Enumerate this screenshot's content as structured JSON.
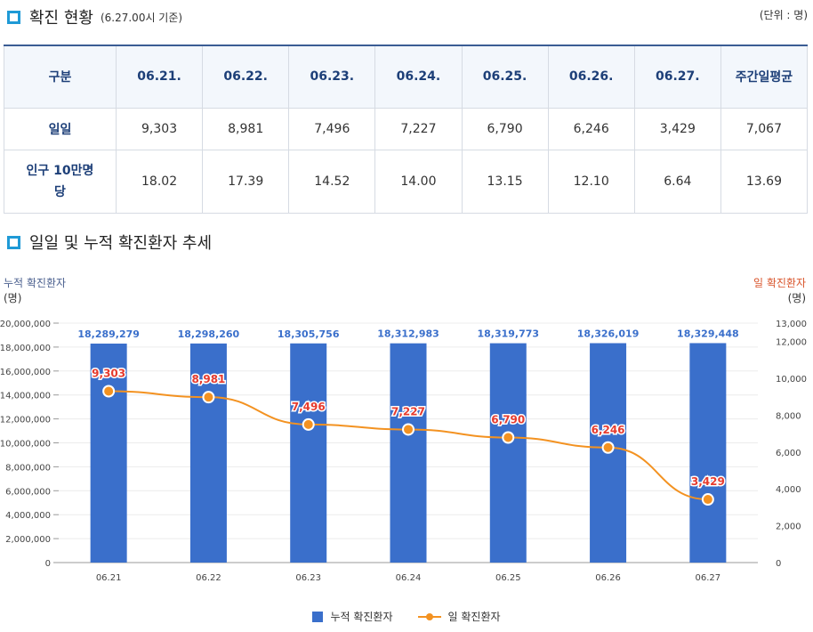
{
  "section1": {
    "title": "확진 현황",
    "subtitle": "(6.27.00시 기준)",
    "unit": "(단위 : 명)"
  },
  "table": {
    "corner": "구분",
    "headers": [
      "06.21.",
      "06.22.",
      "06.23.",
      "06.24.",
      "06.25.",
      "06.26.",
      "06.27.",
      "주간일평균"
    ],
    "rows": [
      {
        "label": "일일",
        "values": [
          "9,303",
          "8,981",
          "7,496",
          "7,227",
          "6,790",
          "6,246",
          "3,429",
          "7,067"
        ]
      },
      {
        "label": "인구 10만명당",
        "values": [
          "18.02",
          "17.39",
          "14.52",
          "14.00",
          "13.15",
          "12.10",
          "6.64",
          "13.69"
        ]
      }
    ]
  },
  "section2": {
    "title": "일일 및 누적 확진환자 추세"
  },
  "colors": {
    "bar": "#3a6fcb",
    "line": "#f39221",
    "bar_label": "#3a6fcb",
    "line_label": "#e63b2e",
    "accent": "#1f9ad6"
  },
  "chart_data": {
    "type": "bar+line",
    "categories": [
      "06.21",
      "06.22",
      "06.23",
      "06.24",
      "06.25",
      "06.26",
      "06.27"
    ],
    "series": [
      {
        "name": "누적 확진환자",
        "type": "bar",
        "axis": "left",
        "values": [
          18289279,
          18298260,
          18305756,
          18312983,
          18319773,
          18326019,
          18329448
        ]
      },
      {
        "name": "일 확진환자",
        "type": "line",
        "axis": "right",
        "values": [
          9303,
          8981,
          7496,
          7227,
          6790,
          6246,
          3429
        ]
      }
    ],
    "left_axis": {
      "label": "누적 확진환자",
      "unit": "(명)",
      "ylim": [
        0,
        20000000
      ],
      "ticks": [
        "0",
        "2,000,000",
        "4,000,000",
        "6,000,000",
        "8,000,000",
        "10,000,000",
        "12,000,000",
        "14,000,000",
        "16,000,000",
        "18,000,000",
        "20,000,000"
      ],
      "tick_values": [
        0,
        2000000,
        4000000,
        6000000,
        8000000,
        10000000,
        12000000,
        14000000,
        16000000,
        18000000,
        20000000
      ]
    },
    "right_axis": {
      "label": "일 확진환자",
      "unit": "(명)",
      "ylim": [
        0,
        13000
      ],
      "ticks": [
        "0",
        "2,000",
        "4,000",
        "6,000",
        "8,000",
        "10,000",
        "12,000",
        "13,000"
      ],
      "tick_values": [
        0,
        2000,
        4000,
        6000,
        8000,
        10000,
        12000,
        13000
      ]
    },
    "bar_labels": [
      "18,289,279",
      "18,298,260",
      "18,305,756",
      "18,312,983",
      "18,319,773",
      "18,326,019",
      "18,329,448"
    ],
    "line_labels": [
      "9,303",
      "8,981",
      "7,496",
      "7,227",
      "6,790",
      "6,246",
      "3,429"
    ],
    "legend": [
      "누적 확진환자",
      "일 확진환자"
    ],
    "grid": true
  }
}
